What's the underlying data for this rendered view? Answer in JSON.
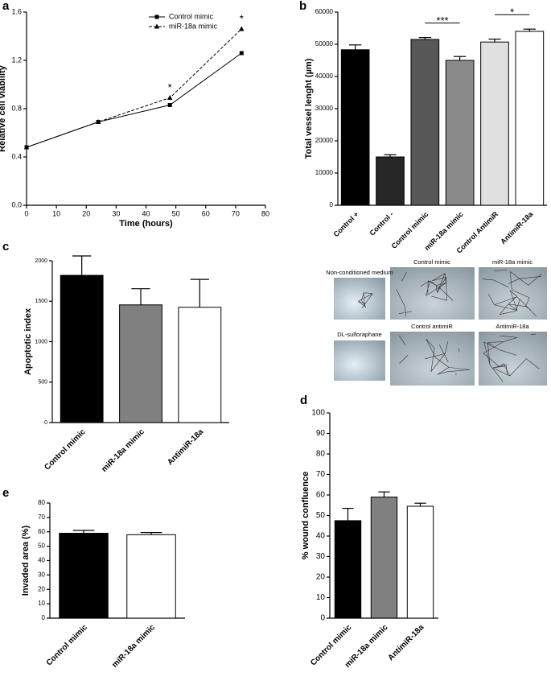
{
  "panel_labels": [
    "a",
    "b",
    "c",
    "d",
    "e"
  ],
  "micrographs": {
    "labels": [
      "Non-conditioned medium",
      "Control mimic",
      "miR-18a mimic",
      "DL-sulforaphane",
      "Control antimiR",
      "AntimiR-18a"
    ]
  },
  "chart_data": [
    {
      "type": "line",
      "xlabel": "Time (hours)",
      "ylabel": "Relative cell viability",
      "x": [
        0,
        24,
        48,
        72
      ],
      "series": [
        {
          "name": "Control mimic",
          "color": "#000000",
          "marker": "square",
          "dashed": false,
          "values": [
            0.48,
            0.69,
            0.83,
            1.26
          ]
        },
        {
          "name": "miR-18a mimic",
          "color": "#000000",
          "marker": "triangle",
          "dashed": true,
          "values": [
            0.48,
            0.69,
            0.89,
            1.46
          ]
        }
      ],
      "annotations": [
        "*",
        "*"
      ],
      "xlim": [
        0,
        80
      ],
      "xticks": [
        0,
        10,
        20,
        30,
        40,
        50,
        60,
        70,
        80
      ],
      "ylim": [
        0,
        1.6
      ],
      "yticks": [
        {
          "value": 0,
          "label": "0.0"
        },
        0.4,
        0.8,
        1.2,
        1.6
      ],
      "legend": "upper right"
    },
    {
      "type": "bar",
      "ylabel": "Total vessel lenght (µm)",
      "categories": [
        "Control +",
        "Control -",
        "Control mimic",
        "miR-18a mimic",
        "Control AntimiR",
        "AntimiR-18a"
      ],
      "values": [
        48300,
        15000,
        51500,
        45000,
        50700,
        54000
      ],
      "errors": [
        1500,
        700,
        600,
        1200,
        900,
        700
      ],
      "colors": [
        "#000000",
        "#262626",
        "#575757",
        "#8a8a8a",
        "#e0e0e0",
        "#ffffff"
      ],
      "annotations": [
        "***",
        "*"
      ],
      "ylim": [
        0,
        60000
      ],
      "yticks": [
        0,
        10000,
        20000,
        30000,
        40000,
        50000,
        60000
      ]
    },
    {
      "type": "bar",
      "ylabel": "Apoptotic index",
      "categories": [
        "Control mimic",
        "miR-18a mimic",
        "AntimiR-18a"
      ],
      "values": [
        1820,
        1455,
        1425
      ],
      "errors": [
        240,
        200,
        345
      ],
      "colors": [
        "#000000",
        "#808080",
        "#ffffff"
      ],
      "ylim": [
        0,
        2000
      ],
      "yticks": [
        0,
        500,
        1000,
        1500,
        2000
      ]
    },
    {
      "type": "bar",
      "ylabel": "% wound confluence",
      "categories": [
        "Control mimic",
        "miR-18a mimic",
        "AntimiR-18a"
      ],
      "values": [
        47.5,
        59,
        54.5
      ],
      "errors": [
        6,
        2.5,
        1.5
      ],
      "colors": [
        "#000000",
        "#808080",
        "#ffffff"
      ],
      "ylim": [
        0,
        100
      ],
      "yticks": [
        0,
        10,
        20,
        30,
        40,
        50,
        60,
        70,
        80,
        90,
        100
      ]
    },
    {
      "type": "bar",
      "ylabel": "Invaded area (%)",
      "categories": [
        "Control mimic",
        "miR-18a mimic"
      ],
      "values": [
        59,
        58
      ],
      "errors": [
        2,
        1.5
      ],
      "colors": [
        "#000000",
        "#ffffff"
      ],
      "ylim": [
        0,
        80
      ],
      "yticks": [
        0,
        10,
        20,
        30,
        40,
        50,
        60,
        70,
        80
      ]
    }
  ]
}
